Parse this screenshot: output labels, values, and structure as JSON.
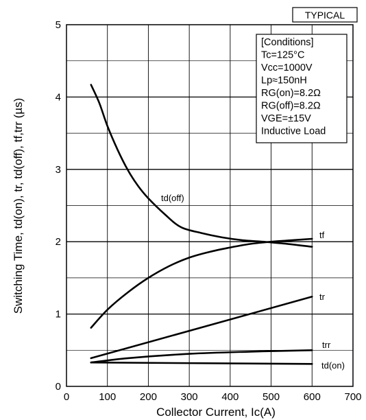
{
  "badge": "TYPICAL",
  "conditions": [
    "[Conditions]",
    "Tc=125°C",
    "Vcc=1000V",
    "Lp≈150nH",
    "RG(on)=8.2Ω",
    "RG(off)=8.2Ω",
    "VGE=±15V",
    "Inductive Load"
  ],
  "chart_data": {
    "type": "line",
    "title": "",
    "xlabel": "Collector Current, Ic(A)",
    "ylabel": "Switching Time, td(on), tr, td(off), tf,trr (µs)",
    "xlim": [
      0,
      700
    ],
    "ylim": [
      0,
      5
    ],
    "x_ticks": [
      "0",
      "100",
      "200",
      "300",
      "400",
      "500",
      "600",
      "700"
    ],
    "y_ticks": [
      "0",
      "1",
      "2",
      "3",
      "4",
      "5"
    ],
    "grid": true,
    "series": [
      {
        "name": "td(off)",
        "x": [
          60,
          80,
          100,
          125,
          150,
          175,
          200,
          240,
          280,
          330,
          380,
          430,
          480,
          540,
          600
        ],
        "y": [
          4.17,
          3.92,
          3.6,
          3.27,
          2.99,
          2.77,
          2.6,
          2.38,
          2.2,
          2.12,
          2.06,
          2.02,
          2.0,
          1.97,
          1.93
        ]
      },
      {
        "name": "tf",
        "x": [
          60,
          100,
          150,
          200,
          250,
          300,
          350,
          400,
          450,
          500,
          550,
          600
        ],
        "y": [
          0.81,
          1.06,
          1.3,
          1.5,
          1.66,
          1.78,
          1.86,
          1.92,
          1.97,
          2.0,
          2.02,
          2.04
        ]
      },
      {
        "name": "tr",
        "x": [
          60,
          600
        ],
        "y": [
          0.39,
          1.24
        ]
      },
      {
        "name": "trr",
        "x": [
          60,
          150,
          300,
          450,
          600
        ],
        "y": [
          0.33,
          0.39,
          0.45,
          0.48,
          0.5
        ]
      },
      {
        "name": "td(on)",
        "x": [
          60,
          600
        ],
        "y": [
          0.33,
          0.31
        ]
      }
    ]
  }
}
